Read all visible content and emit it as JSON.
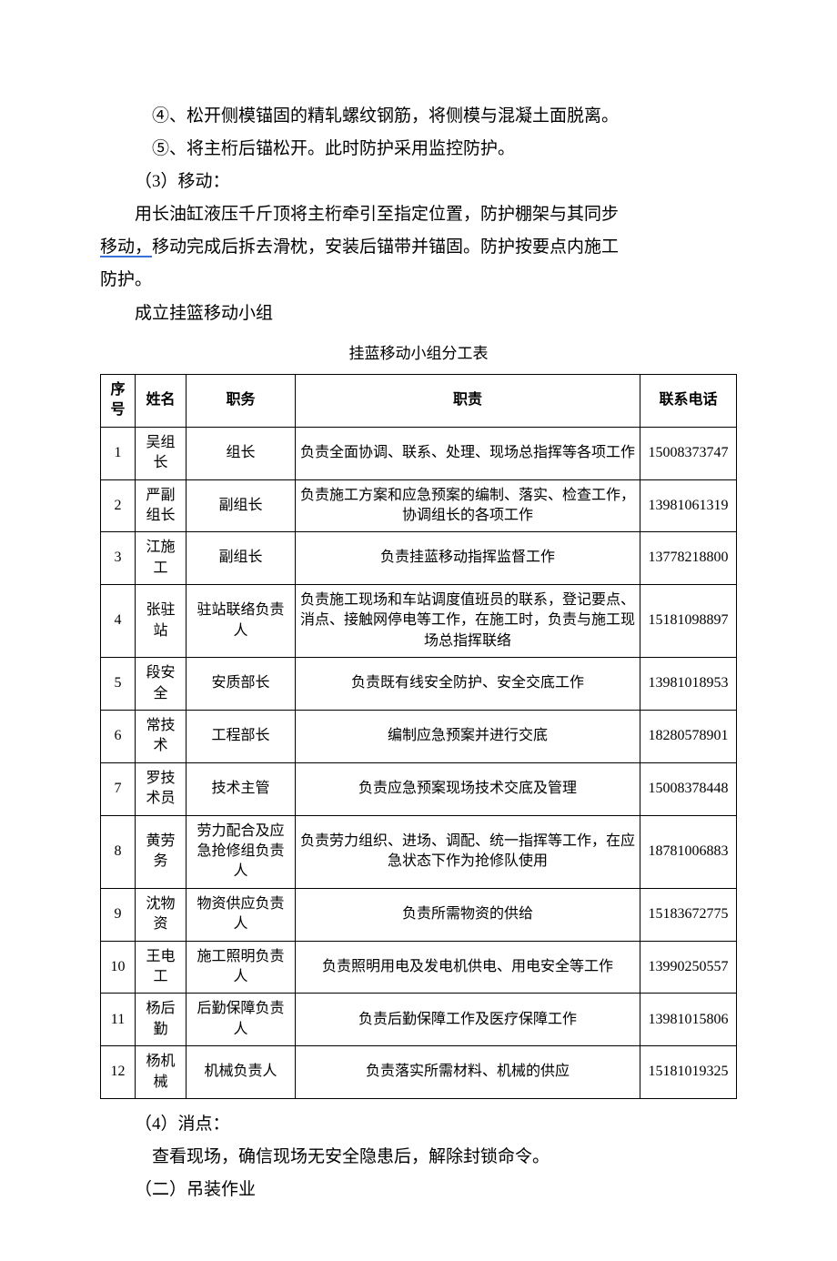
{
  "text": {
    "line1": "④、松开侧模锚固的精轧螺纹钢筋，将侧模与混凝土面脱离。",
    "line2": "⑤、将主桁后锚松开。此时防护采用监控防护。",
    "line3": "（3）移动：",
    "line4a": "用长油缸液压千斤顶将主桁牵引至指定位置，防护棚架与其同步",
    "line4b_underlined": "移动，",
    "line4b_rest": "移动完成后拆去滑枕，安装后锚带并锚固。防护按要点内施工",
    "line4c": "防护。",
    "line5": "成立挂篮移动小组",
    "line6": "（4）消点：",
    "line7": "查看现场，确信现场无安全隐患后，解除封锁命令。",
    "line8": "（二）吊装作业"
  },
  "table": {
    "title": "挂蓝移动小组分工表",
    "headers": {
      "seq": "序号",
      "name": "姓名",
      "role": "职务",
      "duty": "职责",
      "phone": "联系电话"
    },
    "rows": [
      {
        "seq": "1",
        "name": "吴组长",
        "role": "组长",
        "duty": "负责全面协调、联系、处理、现场总指挥等各项工作",
        "phone": "15008373747"
      },
      {
        "seq": "2",
        "name": "严副组长",
        "role": "副组长",
        "duty": "负责施工方案和应急预案的编制、落实、检查工作，协调组长的各项工作",
        "phone": "13981061319"
      },
      {
        "seq": "3",
        "name": "江施工",
        "role": "副组长",
        "duty": "负责挂蓝移动指挥监督工作",
        "phone": "13778218800"
      },
      {
        "seq": "4",
        "name": "张驻站",
        "role": "驻站联络负责人",
        "duty": "负责施工现场和车站调度值班员的联系，登记要点、消点、接触网停电等工作，在施工时，负责与施工现场总指挥联络",
        "phone": "15181098897"
      },
      {
        "seq": "5",
        "name": "段安全",
        "role": "安质部长",
        "duty": "负责既有线安全防护、安全交底工作",
        "phone": "13981018953"
      },
      {
        "seq": "6",
        "name": "常技术",
        "role": "工程部长",
        "duty": "编制应急预案并进行交底",
        "phone": "18280578901"
      },
      {
        "seq": "7",
        "name": "罗技术员",
        "role": "技术主管",
        "duty": "负责应急预案现场技术交底及管理",
        "phone": "15008378448"
      },
      {
        "seq": "8",
        "name": "黄劳务",
        "role": "劳力配合及应急抢修组负责人",
        "duty": "负责劳力组织、进场、调配、统一指挥等工作，在应急状态下作为抢修队使用",
        "phone": "18781006883"
      },
      {
        "seq": "9",
        "name": "沈物资",
        "role": "物资供应负责人",
        "duty": "负责所需物资的供给",
        "phone": "15183672775"
      },
      {
        "seq": "10",
        "name": "王电工",
        "role": "施工照明负责人",
        "duty": "负责照明用电及发电机供电、用电安全等工作",
        "phone": "13990250557"
      },
      {
        "seq": "11",
        "name": "杨后勤",
        "role": "后勤保障负责人",
        "duty": "负责后勤保障工作及医疗保障工作",
        "phone": "13981015806"
      },
      {
        "seq": "12",
        "name": "杨机械",
        "role": "机械负责人",
        "duty": "负责落实所需材料、机械的供应",
        "phone": "15181019325"
      }
    ]
  },
  "style": {
    "body_font_size": 19,
    "table_font_size": 16,
    "table_title_font_size": 17,
    "text_color": "#000000",
    "background_color": "#ffffff",
    "underline_color": "#3a6fd8",
    "border_color": "#000000",
    "col_widths": {
      "seq": 38,
      "name": 56,
      "role": 120,
      "phone": 106
    }
  }
}
